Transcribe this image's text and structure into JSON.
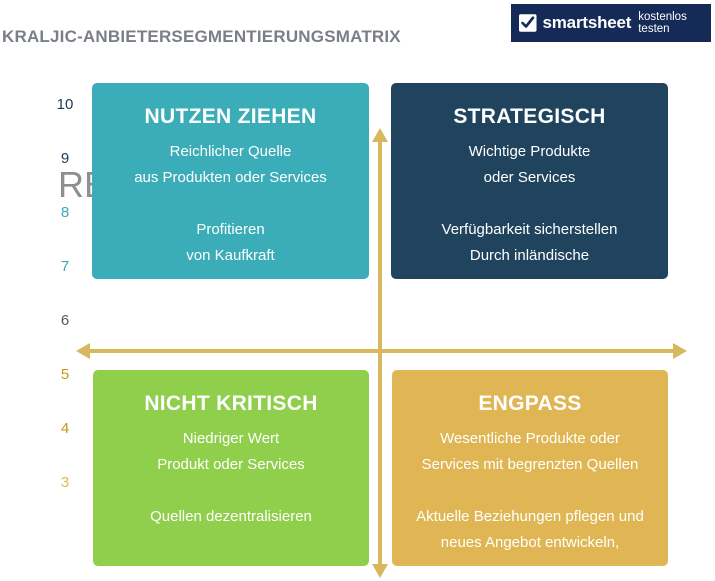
{
  "title": "KRALJIC-ANBIETERSEGMENTIERUNGSMATRIX",
  "brand": {
    "name": "smartsheet",
    "cta": "kostenlos testen",
    "bg_color": "#162a57"
  },
  "ghost_text": "RE",
  "axis_numbers": [
    {
      "label": "10",
      "color": "#1f3a5a"
    },
    {
      "label": "9",
      "color": "#1f3a5a"
    },
    {
      "label": "8",
      "color": "#3aaab5"
    },
    {
      "label": "7",
      "color": "#3aaab5"
    },
    {
      "label": "6",
      "color": "#4a5a66"
    },
    {
      "label": "5",
      "color": "#c59a16"
    },
    {
      "label": "4",
      "color": "#c59a16"
    },
    {
      "label": "3",
      "color": "#e0b94f"
    }
  ],
  "quadrants": {
    "nutzen": {
      "title": "NUTZEN ZIEHEN",
      "color": "#3aadb8",
      "line1": "Reichlicher Quelle",
      "line2": "aus Produkten oder Services",
      "line3": "Profitieren",
      "line4": "von Kaufkraft"
    },
    "strategisch": {
      "title": "STRATEGISCH",
      "color": "#20435e",
      "line1": "Wichtige Produkte",
      "line2": "oder Services",
      "line3": "Verfügbarkeit sicherstellen",
      "line4": "Durch inländische"
    },
    "nicht_kritisch": {
      "title": "NICHT KRITISCH",
      "color": "#8fcf4c",
      "line1": "Niedriger Wert",
      "line2": "Produkt oder Services",
      "line3": "Quellen dezentralisieren",
      "line4": ""
    },
    "engpass": {
      "title": "ENGPASS",
      "color": "#dfb653",
      "line1": "Wesentliche Produkte oder",
      "line2": "Services mit begrenzten Quellen",
      "line3": "Aktuelle Beziehungen pflegen und",
      "line4": "neues Angebot entwickeln,"
    }
  },
  "axis_color": "#d8b85e"
}
